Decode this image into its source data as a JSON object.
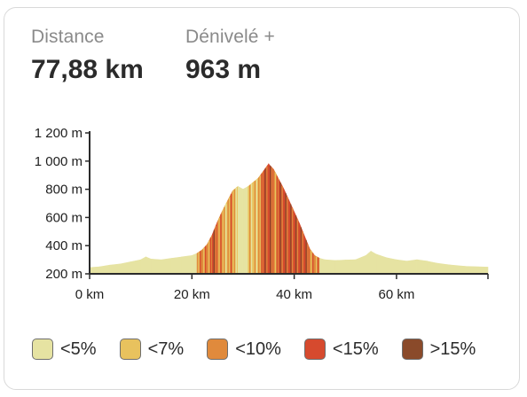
{
  "stats": {
    "distance": {
      "label": "Distance",
      "value": "77,88 km"
    },
    "elevation": {
      "label": "Dénivelé +",
      "value": "963 m"
    }
  },
  "legend": [
    {
      "label": "<5%",
      "color": "#e6e3a2"
    },
    {
      "label": "<7%",
      "color": "#e8c25e"
    },
    {
      "label": "<10%",
      "color": "#e08a3c"
    },
    {
      "label": "<15%",
      "color": "#d64a2e"
    },
    {
      "label": ">15%",
      "color": "#8a4a2a"
    }
  ],
  "chart_data": {
    "type": "area",
    "xlabel": "",
    "ylabel": "",
    "x_unit": "km",
    "y_unit": "m",
    "xlim": [
      0,
      77.88
    ],
    "ylim": [
      200,
      1200
    ],
    "x_ticks": [
      "0 km",
      "20 km",
      "40 km",
      "60 km"
    ],
    "y_ticks": [
      "200 m",
      "400 m",
      "600 m",
      "800 m",
      "1 000 m",
      "1 200 m"
    ],
    "grid": false,
    "series": [
      {
        "x": [
          0,
          2,
          4,
          6,
          8,
          10,
          11,
          12,
          14,
          16,
          18,
          20,
          21,
          22,
          23,
          24,
          25,
          26,
          27,
          28,
          29,
          30,
          31,
          32,
          33,
          34,
          35,
          36,
          37,
          38,
          39,
          40,
          41,
          42,
          43,
          44,
          45,
          46,
          48,
          50,
          52,
          54,
          55,
          56,
          58,
          60,
          62,
          64,
          66,
          68,
          70,
          72,
          74,
          76,
          77.88
        ],
        "y": [
          245,
          250,
          262,
          270,
          285,
          300,
          320,
          305,
          300,
          310,
          320,
          330,
          345,
          370,
          410,
          480,
          570,
          650,
          720,
          790,
          820,
          800,
          820,
          850,
          880,
          930,
          980,
          940,
          870,
          800,
          720,
          640,
          560,
          470,
          380,
          330,
          310,
          300,
          295,
          298,
          300,
          330,
          360,
          340,
          315,
          300,
          290,
          300,
          290,
          275,
          265,
          258,
          252,
          250,
          248
        ]
      }
    ],
    "gradient_classes": [
      0,
      0,
      0,
      0,
      0,
      0,
      0,
      0,
      0,
      0,
      0,
      0,
      2,
      2,
      2,
      3,
      2,
      1,
      2,
      1,
      0,
      0,
      1,
      1,
      2,
      3,
      3,
      2,
      3,
      3,
      3,
      3,
      3,
      3,
      2,
      2,
      0,
      0,
      0,
      0,
      0,
      0,
      0,
      0,
      0,
      0,
      0,
      0,
      0,
      0,
      0,
      0,
      0,
      0
    ]
  }
}
